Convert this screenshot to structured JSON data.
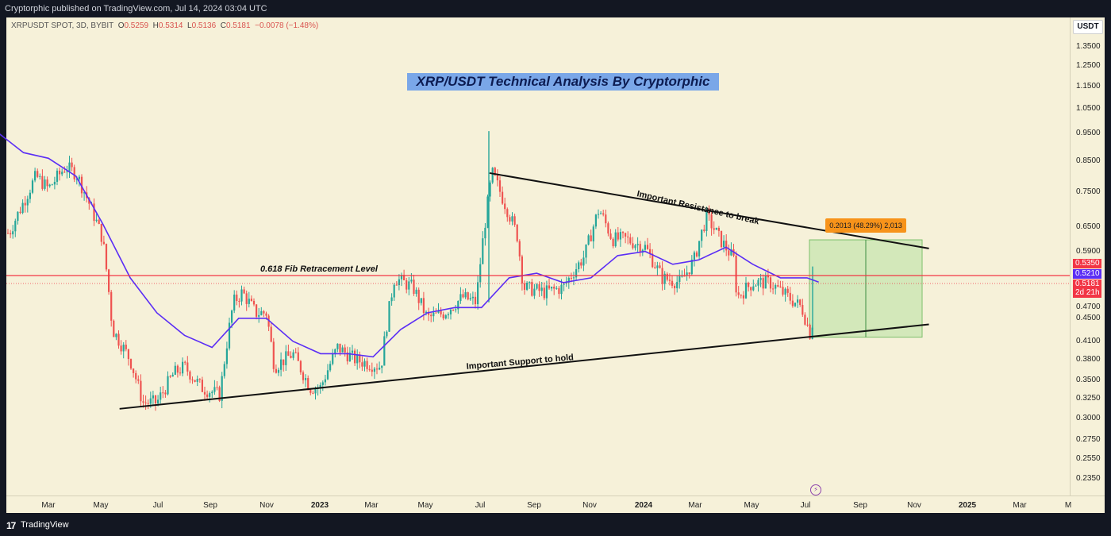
{
  "header": {
    "publish_text": "Cryptorphic published on TradingView.com, Jul 14, 2024 03:04 UTC"
  },
  "symbol_line": {
    "symbol": "XRPUSDT SPOT, 3D, BYBIT",
    "open_label": "O",
    "open": "0.5259",
    "high_label": "H",
    "high": "0.5314",
    "low_label": "L",
    "low": "0.5136",
    "close_label": "C",
    "close": "0.5181",
    "change": "−0.0078 (−1.48%)"
  },
  "currency_button": "USDT",
  "footer": {
    "logo": "17",
    "brand": "TradingView"
  },
  "colors": {
    "background": "#f6f1d9",
    "up_candle": "#26a69a",
    "down_candle": "#ef5350",
    "ma_line": "#5b2ef5",
    "fib_line": "#f23645",
    "target_box": "#b7e0a0",
    "position_tag": "#f7931a"
  },
  "icons": [
    "trading-view-logo",
    "alert-bolt-icon"
  ],
  "chart_data": {
    "type": "candlestick",
    "title": "XRP/USDT Technical Analysis By Cryptorphic",
    "y_scale": "log",
    "ylim": [
      0.215,
      1.55
    ],
    "price_ticks": [
      "1.3500",
      "1.2500",
      "1.1500",
      "1.0500",
      "0.9500",
      "0.8500",
      "0.7500",
      "0.6500",
      "0.5900",
      "0.4700",
      "0.4500",
      "0.4100",
      "0.3800",
      "0.3500",
      "0.3250",
      "0.3000",
      "0.2750",
      "0.2550",
      "0.2350"
    ],
    "time_ticks": [
      "Mar",
      "May",
      "Jul",
      "Sep",
      "Nov",
      "2023",
      "Mar",
      "May",
      "Jul",
      "Sep",
      "Nov",
      "2024",
      "Mar",
      "May",
      "Jul",
      "Sep",
      "Nov",
      "2025",
      "Mar",
      "M"
    ],
    "price_labels": [
      {
        "text": "0.5350",
        "color": "#f23645"
      },
      {
        "text": "0.5210",
        "color": "#5b2ef5"
      },
      {
        "text": "0.5181",
        "color": "#f23645"
      },
      {
        "text": "2d 21h",
        "color": "#f23645"
      }
    ],
    "annotations": {
      "fib_label": "0.618 Fib Retracement Level",
      "resistance_label": "Important Resistance to break",
      "support_label": "Important Support to hold",
      "target_text": "0.2013 (48.29%) 2,013"
    },
    "fib_level": 0.535,
    "target_range": [
      0.4169,
      0.6182
    ],
    "resistance_line": [
      [
        "2023-07-10",
        0.81
      ],
      [
        "2024-11-15",
        0.597
      ]
    ],
    "support_line": [
      [
        "2022-05-20",
        0.312
      ],
      [
        "2024-11-15",
        0.439
      ]
    ],
    "ma_series": [
      [
        "2022-01-01",
        0.96
      ],
      [
        "2022-02-01",
        0.88
      ],
      [
        "2022-03-01",
        0.86
      ],
      [
        "2022-04-01",
        0.8
      ],
      [
        "2022-05-01",
        0.66
      ],
      [
        "2022-06-01",
        0.53
      ],
      [
        "2022-07-01",
        0.46
      ],
      [
        "2022-08-01",
        0.42
      ],
      [
        "2022-09-01",
        0.4
      ],
      [
        "2022-10-01",
        0.45
      ],
      [
        "2022-11-01",
        0.45
      ],
      [
        "2022-12-01",
        0.41
      ],
      [
        "2023-01-01",
        0.39
      ],
      [
        "2023-02-01",
        0.39
      ],
      [
        "2023-03-01",
        0.385
      ],
      [
        "2023-04-01",
        0.43
      ],
      [
        "2023-05-01",
        0.46
      ],
      [
        "2023-06-01",
        0.47
      ],
      [
        "2023-07-01",
        0.47
      ],
      [
        "2023-08-01",
        0.53
      ],
      [
        "2023-09-01",
        0.54
      ],
      [
        "2023-10-01",
        0.52
      ],
      [
        "2023-11-01",
        0.53
      ],
      [
        "2023-12-01",
        0.58
      ],
      [
        "2024-01-01",
        0.59
      ],
      [
        "2024-02-01",
        0.56
      ],
      [
        "2024-03-01",
        0.57
      ],
      [
        "2024-04-01",
        0.6
      ],
      [
        "2024-05-01",
        0.56
      ],
      [
        "2024-06-01",
        0.53
      ],
      [
        "2024-07-01",
        0.53
      ],
      [
        "2024-07-14",
        0.521
      ]
    ],
    "close_series": [
      [
        "2022-01-01",
        0.78
      ],
      [
        "2022-01-15",
        0.63
      ],
      [
        "2022-02-01",
        0.72
      ],
      [
        "2022-02-15",
        0.8
      ],
      [
        "2022-03-01",
        0.76
      ],
      [
        "2022-03-20",
        0.83
      ],
      [
        "2022-04-01",
        0.81
      ],
      [
        "2022-04-20",
        0.69
      ],
      [
        "2022-05-01",
        0.62
      ],
      [
        "2022-05-12",
        0.43
      ],
      [
        "2022-06-01",
        0.38
      ],
      [
        "2022-06-15",
        0.32
      ],
      [
        "2022-07-01",
        0.32
      ],
      [
        "2022-07-20",
        0.36
      ],
      [
        "2022-08-01",
        0.37
      ],
      [
        "2022-08-20",
        0.34
      ],
      [
        "2022-09-10",
        0.33
      ],
      [
        "2022-09-25",
        0.48
      ],
      [
        "2022-10-05",
        0.5
      ],
      [
        "2022-10-20",
        0.46
      ],
      [
        "2022-11-01",
        0.46
      ],
      [
        "2022-11-10",
        0.37
      ],
      [
        "2022-12-01",
        0.39
      ],
      [
        "2022-12-20",
        0.34
      ],
      [
        "2023-01-01",
        0.34
      ],
      [
        "2023-01-20",
        0.4
      ],
      [
        "2023-02-10",
        0.38
      ],
      [
        "2023-03-10",
        0.37
      ],
      [
        "2023-03-25",
        0.53
      ],
      [
        "2023-04-15",
        0.51
      ],
      [
        "2023-05-01",
        0.45
      ],
      [
        "2023-05-20",
        0.46
      ],
      [
        "2023-06-10",
        0.49
      ],
      [
        "2023-06-25",
        0.48
      ],
      [
        "2023-07-13",
        0.81
      ],
      [
        "2023-07-25",
        0.73
      ],
      [
        "2023-08-10",
        0.63
      ],
      [
        "2023-08-17",
        0.51
      ],
      [
        "2023-09-10",
        0.5
      ],
      [
        "2023-10-01",
        0.51
      ],
      [
        "2023-10-25",
        0.58
      ],
      [
        "2023-11-10",
        0.7
      ],
      [
        "2023-11-25",
        0.62
      ],
      [
        "2023-12-10",
        0.62
      ],
      [
        "2024-01-01",
        0.6
      ],
      [
        "2024-01-20",
        0.53
      ],
      [
        "2024-02-10",
        0.52
      ],
      [
        "2024-02-25",
        0.57
      ],
      [
        "2024-03-10",
        0.68
      ],
      [
        "2024-03-25",
        0.62
      ],
      [
        "2024-04-10",
        0.57
      ],
      [
        "2024-04-13",
        0.49
      ],
      [
        "2024-05-01",
        0.52
      ],
      [
        "2024-05-20",
        0.52
      ],
      [
        "2024-06-10",
        0.49
      ],
      [
        "2024-06-25",
        0.47
      ],
      [
        "2024-07-05",
        0.42
      ],
      [
        "2024-07-14",
        0.518
      ]
    ]
  }
}
